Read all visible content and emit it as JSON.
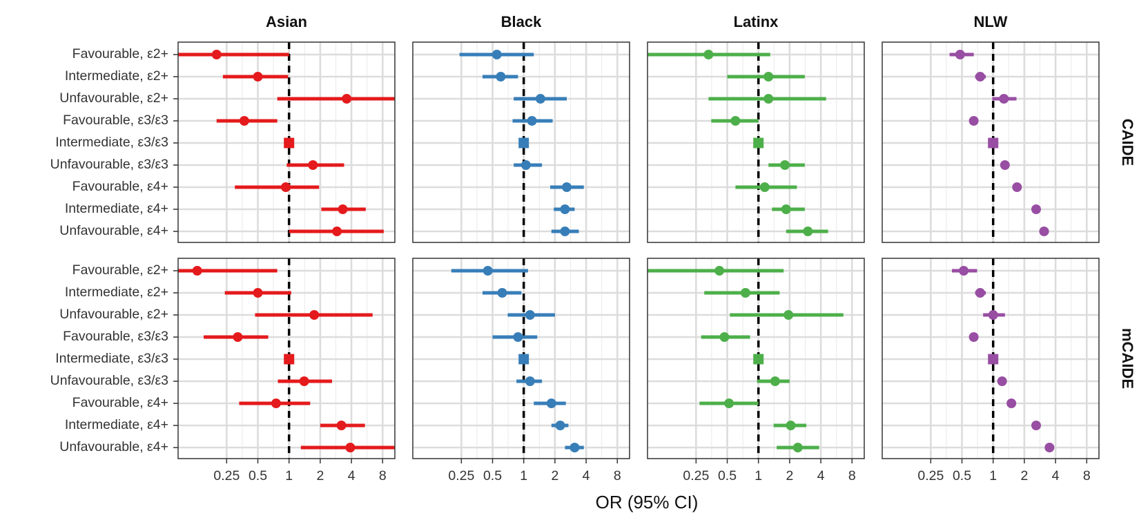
{
  "chart_data": {
    "type": "forest",
    "x_scale": "log2",
    "x_ticks": [
      0.25,
      0.5,
      1,
      2,
      4,
      8
    ],
    "x_tick_labels": [
      "0.25",
      "0.5",
      "1",
      "2",
      "4",
      "8"
    ],
    "xlim": [
      0.085,
      10.5
    ],
    "xlabel": "OR (95% CI)",
    "reference_line": 1,
    "grid": true,
    "columns": [
      {
        "name": "Asian",
        "color": "#E41A1C"
      },
      {
        "name": "Black",
        "color": "#377EB8"
      },
      {
        "name": "Latinx",
        "color": "#4DAF4A"
      },
      {
        "name": "NLW",
        "color": "#984EA3"
      }
    ],
    "rows": [
      "CAIDE",
      "mCAIDE"
    ],
    "categories": [
      "Favourable, ε2+",
      "Intermediate, ε2+",
      "Unfavourable, ε2+",
      "Favourable, ε3/ε3",
      "Intermediate, ε3/ε3",
      "Unfavourable, ε3/ε3",
      "Favourable, ε4+",
      "Intermediate, ε4+",
      "Unfavourable, ε4+"
    ],
    "reference_category": "Intermediate, ε3/ε3",
    "panels": {
      "CAIDE": {
        "Asian": [
          {
            "or": 0.2,
            "lo": 0.085,
            "hi": 1.0
          },
          {
            "or": 0.5,
            "lo": 0.23,
            "hi": 0.98
          },
          {
            "or": 3.6,
            "lo": 0.77,
            "hi": 10.5
          },
          {
            "or": 0.37,
            "lo": 0.2,
            "hi": 0.77
          },
          {
            "or": 1.0,
            "lo": 1.0,
            "hi": 1.0
          },
          {
            "or": 1.7,
            "lo": 0.95,
            "hi": 3.4
          },
          {
            "or": 0.93,
            "lo": 0.3,
            "hi": 1.95
          },
          {
            "or": 3.3,
            "lo": 2.05,
            "hi": 5.5
          },
          {
            "or": 2.9,
            "lo": 1.0,
            "hi": 8.2
          }
        ],
        "Black": [
          {
            "or": 0.55,
            "lo": 0.24,
            "hi": 1.25
          },
          {
            "or": 0.6,
            "lo": 0.4,
            "hi": 0.88
          },
          {
            "or": 1.45,
            "lo": 0.8,
            "hi": 2.6
          },
          {
            "or": 1.2,
            "lo": 0.78,
            "hi": 1.9
          },
          {
            "or": 1.0,
            "lo": 1.0,
            "hi": 1.0
          },
          {
            "or": 1.05,
            "lo": 0.8,
            "hi": 1.5
          },
          {
            "or": 2.6,
            "lo": 1.8,
            "hi": 3.8
          },
          {
            "or": 2.5,
            "lo": 1.95,
            "hi": 3.1
          },
          {
            "or": 2.5,
            "lo": 1.85,
            "hi": 3.4
          }
        ],
        "Latinx": [
          {
            "or": 0.33,
            "lo": 0.085,
            "hi": 1.3
          },
          {
            "or": 1.25,
            "lo": 0.5,
            "hi": 2.8
          },
          {
            "or": 1.25,
            "lo": 0.33,
            "hi": 4.5
          },
          {
            "or": 0.6,
            "lo": 0.35,
            "hi": 1.0
          },
          {
            "or": 1.0,
            "lo": 1.0,
            "hi": 1.0
          },
          {
            "or": 1.8,
            "lo": 1.25,
            "hi": 2.8
          },
          {
            "or": 1.15,
            "lo": 0.6,
            "hi": 2.35
          },
          {
            "or": 1.85,
            "lo": 1.35,
            "hi": 2.8
          },
          {
            "or": 3.0,
            "lo": 1.85,
            "hi": 4.7
          }
        ],
        "NLW": [
          {
            "or": 0.48,
            "lo": 0.38,
            "hi": 0.65
          },
          {
            "or": 0.75,
            "lo": 0.67,
            "hi": 0.85
          },
          {
            "or": 1.27,
            "lo": 0.98,
            "hi": 1.68
          },
          {
            "or": 0.65,
            "lo": 0.6,
            "hi": 0.7
          },
          {
            "or": 1.0,
            "lo": 1.0,
            "hi": 1.0
          },
          {
            "or": 1.3,
            "lo": 1.22,
            "hi": 1.4
          },
          {
            "or": 1.7,
            "lo": 1.55,
            "hi": 1.88
          },
          {
            "or": 2.6,
            "lo": 2.45,
            "hi": 2.75
          },
          {
            "or": 3.1,
            "lo": 2.8,
            "hi": 3.45
          }
        ]
      },
      "mCAIDE": {
        "Asian": [
          {
            "or": 0.13,
            "lo": 0.085,
            "hi": 0.77
          },
          {
            "or": 0.5,
            "lo": 0.24,
            "hi": 1.05
          },
          {
            "or": 1.75,
            "lo": 0.47,
            "hi": 6.4
          },
          {
            "or": 0.32,
            "lo": 0.15,
            "hi": 0.63
          },
          {
            "or": 1.0,
            "lo": 1.0,
            "hi": 1.0
          },
          {
            "or": 1.4,
            "lo": 0.78,
            "hi": 2.6
          },
          {
            "or": 0.75,
            "lo": 0.33,
            "hi": 1.6
          },
          {
            "or": 3.2,
            "lo": 2.0,
            "hi": 5.4
          },
          {
            "or": 3.9,
            "lo": 1.3,
            "hi": 10.5
          }
        ],
        "Black": [
          {
            "or": 0.45,
            "lo": 0.2,
            "hi": 1.1
          },
          {
            "or": 0.62,
            "lo": 0.4,
            "hi": 0.95
          },
          {
            "or": 1.15,
            "lo": 0.7,
            "hi": 2.0
          },
          {
            "or": 0.88,
            "lo": 0.5,
            "hi": 1.35
          },
          {
            "or": 1.0,
            "lo": 1.0,
            "hi": 1.0
          },
          {
            "or": 1.15,
            "lo": 0.85,
            "hi": 1.5
          },
          {
            "or": 1.85,
            "lo": 1.25,
            "hi": 2.55
          },
          {
            "or": 2.25,
            "lo": 1.85,
            "hi": 2.7
          },
          {
            "or": 3.1,
            "lo": 2.5,
            "hi": 3.8
          }
        ],
        "Latinx": [
          {
            "or": 0.42,
            "lo": 0.085,
            "hi": 1.75
          },
          {
            "or": 0.75,
            "lo": 0.3,
            "hi": 1.6
          },
          {
            "or": 1.95,
            "lo": 0.53,
            "hi": 6.6
          },
          {
            "or": 0.47,
            "lo": 0.28,
            "hi": 0.83
          },
          {
            "or": 1.0,
            "lo": 1.0,
            "hi": 1.0
          },
          {
            "or": 1.45,
            "lo": 0.97,
            "hi": 2.0
          },
          {
            "or": 0.52,
            "lo": 0.27,
            "hi": 1.0
          },
          {
            "or": 2.05,
            "lo": 1.4,
            "hi": 2.9
          },
          {
            "or": 2.4,
            "lo": 1.5,
            "hi": 3.85
          }
        ],
        "NLW": [
          {
            "or": 0.52,
            "lo": 0.4,
            "hi": 0.7
          },
          {
            "or": 0.75,
            "lo": 0.67,
            "hi": 0.85
          },
          {
            "or": 1.0,
            "lo": 0.8,
            "hi": 1.3
          },
          {
            "or": 0.65,
            "lo": 0.6,
            "hi": 0.7
          },
          {
            "or": 1.0,
            "lo": 1.0,
            "hi": 1.0
          },
          {
            "or": 1.22,
            "lo": 1.15,
            "hi": 1.3
          },
          {
            "or": 1.5,
            "lo": 1.38,
            "hi": 1.62
          },
          {
            "or": 2.6,
            "lo": 2.45,
            "hi": 2.75
          },
          {
            "or": 3.5,
            "lo": 3.15,
            "hi": 3.85
          }
        ]
      }
    }
  }
}
